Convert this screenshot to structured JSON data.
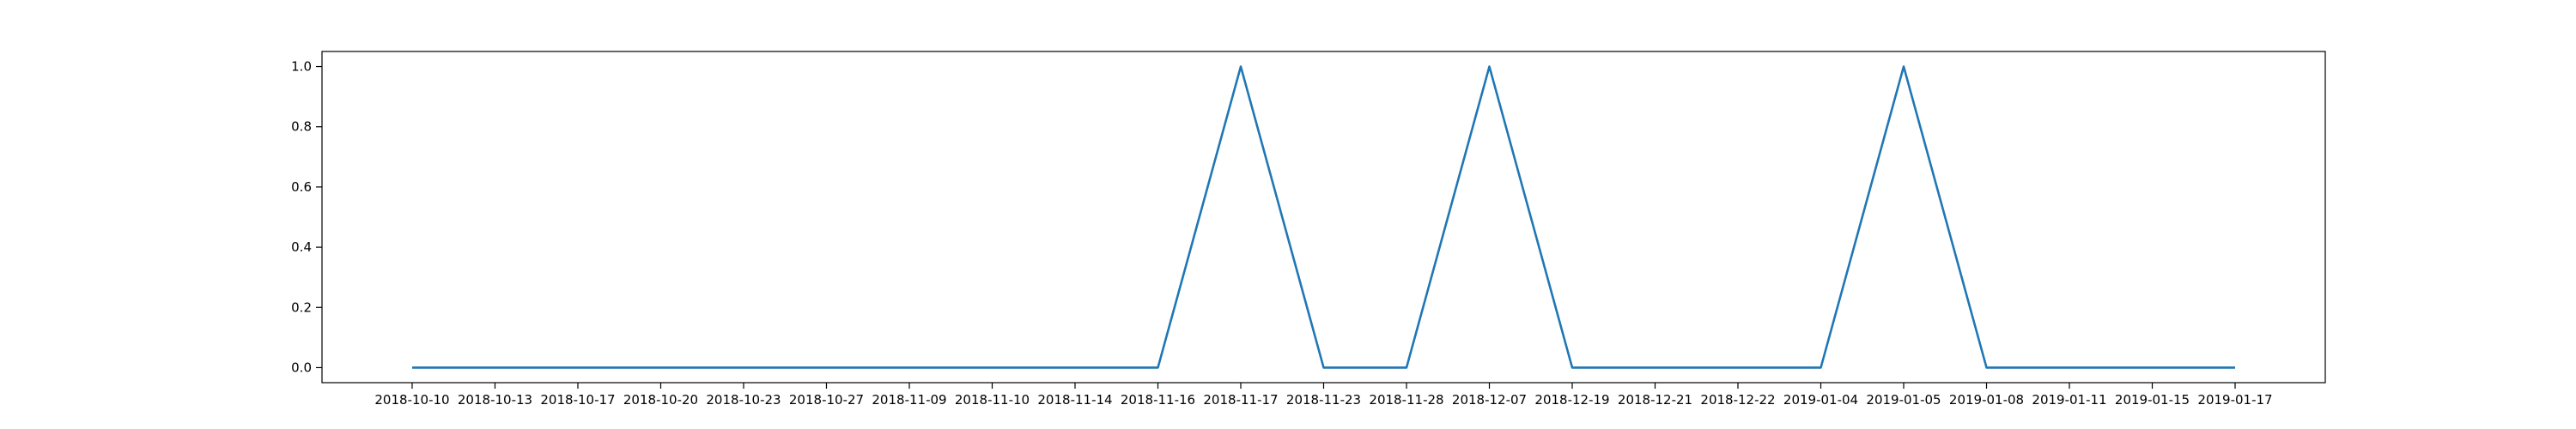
{
  "chart_data": {
    "type": "line",
    "title": "",
    "xlabel": "",
    "ylabel": "",
    "x": [
      "2018-10-10",
      "2018-10-13",
      "2018-10-17",
      "2018-10-20",
      "2018-10-23",
      "2018-10-27",
      "2018-11-09",
      "2018-11-10",
      "2018-11-14",
      "2018-11-16",
      "2018-11-17",
      "2018-11-23",
      "2018-11-28",
      "2018-12-07",
      "2018-12-19",
      "2018-12-21",
      "2018-12-22",
      "2019-01-04",
      "2019-01-05",
      "2019-01-08",
      "2019-01-11",
      "2019-01-15",
      "2019-01-17"
    ],
    "series": [
      {
        "values": [
          0,
          0,
          0,
          0,
          0,
          0,
          0,
          0,
          0,
          0,
          1,
          0,
          0,
          1,
          0,
          0,
          0,
          0,
          1,
          0,
          0,
          0,
          0
        ]
      }
    ],
    "ylim": [
      -0.05,
      1.05
    ],
    "yticks": [
      0.0,
      0.2,
      0.4,
      0.6,
      0.8,
      1.0
    ],
    "ytick_labels": [
      "0.0",
      "0.2",
      "0.4",
      "0.6",
      "0.8",
      "1.0"
    ],
    "x_axis": "categorical",
    "grid": false,
    "legend": "none",
    "line_color": "#1f77b4"
  }
}
